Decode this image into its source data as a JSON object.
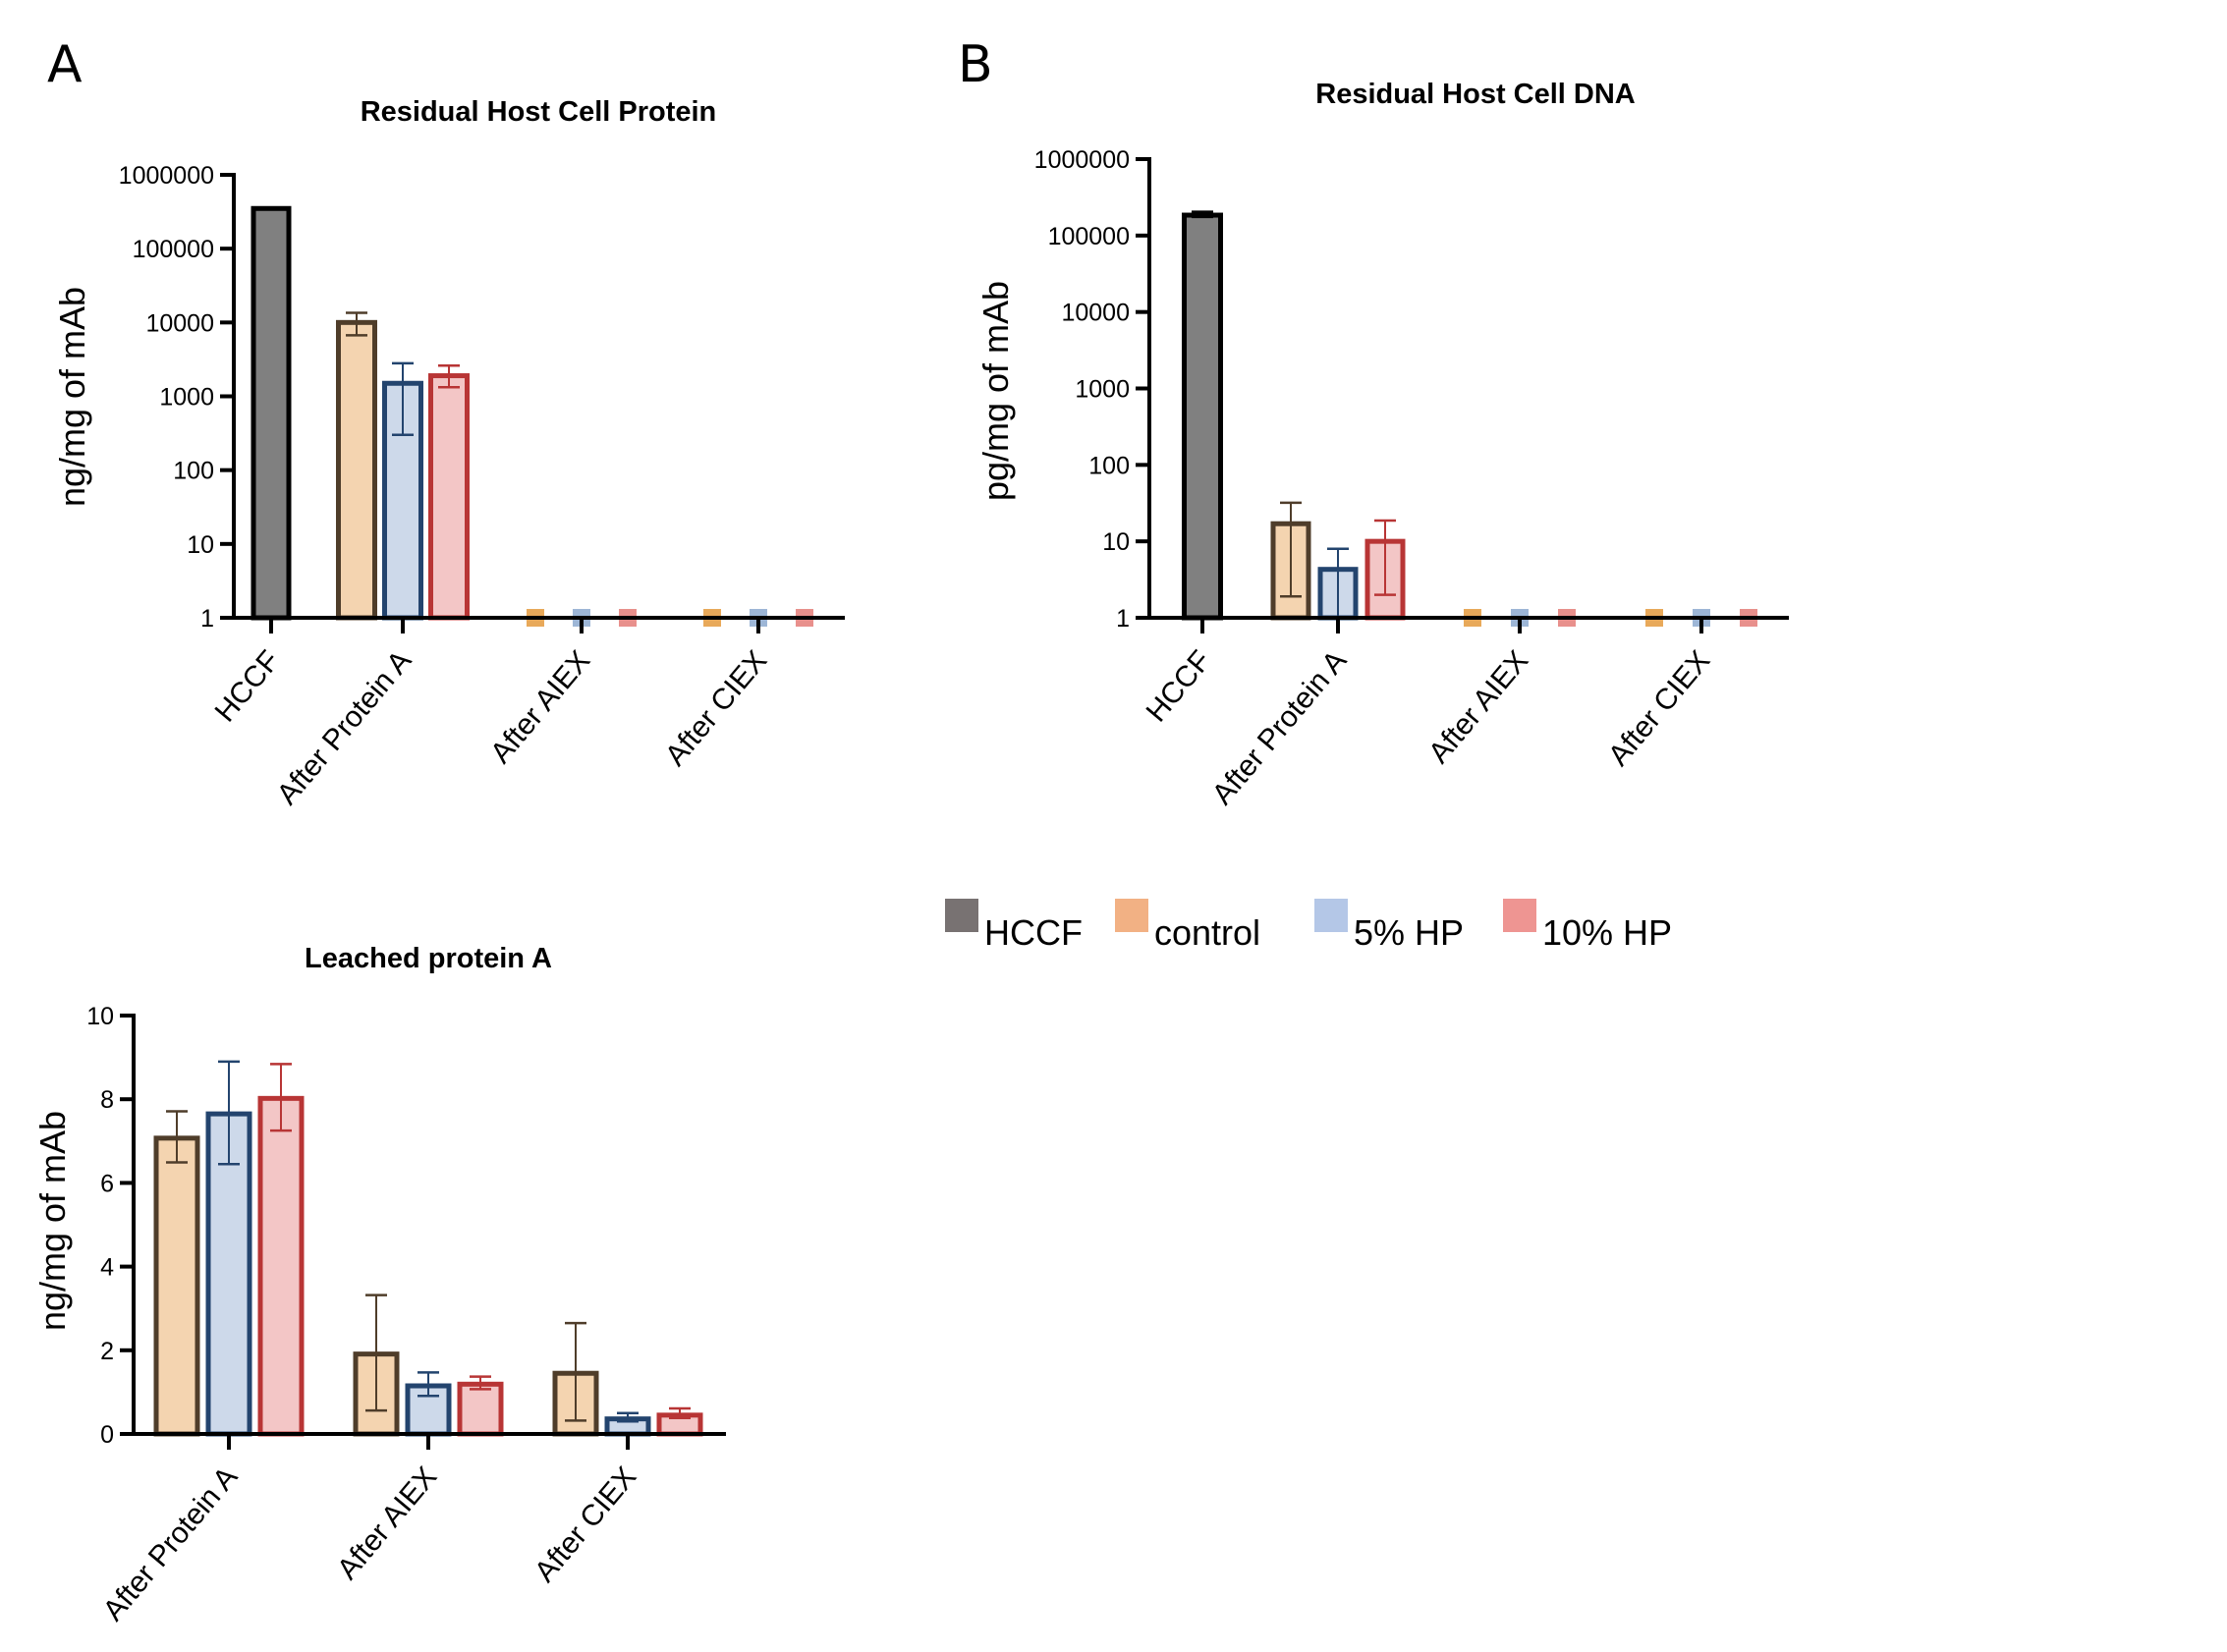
{
  "panel_labels": {
    "a": "A",
    "b": "B"
  },
  "legend": [
    {
      "label": "HCCF",
      "color": "#787272"
    },
    {
      "label": "control",
      "color": "#F2B184"
    },
    {
      "label": "5% HP",
      "color": "#B4C7E7"
    },
    {
      "label": "10% HP",
      "color": "#EE9592"
    }
  ],
  "series_styles": {
    "HCCF": {
      "fill": "#808080",
      "stroke": "#000000"
    },
    "control": {
      "fill": "#F4D4B0",
      "stroke": "#4F3D2A",
      "marker": "#E8A95A"
    },
    "5% HP": {
      "fill": "#CDD9EA",
      "stroke": "#23446E",
      "marker": "#9DB6D6"
    },
    "10% HP": {
      "fill": "#F3C6C6",
      "stroke": "#B83535",
      "marker": "#E8908C"
    }
  },
  "chart_data": [
    {
      "id": "hcp",
      "type": "bar",
      "scale": "log",
      "title": "Residual Host Cell Protein",
      "xlabel": "",
      "ylabel": "ng/mg of mAb",
      "ylim": [
        1,
        1000000
      ],
      "yticks": [
        "1",
        "10",
        "100",
        "1000",
        "10000",
        "100000",
        "1000000"
      ],
      "categories": [
        "HCCF",
        "After Protein A",
        "After AIEX",
        "After CIEX"
      ],
      "series": [
        {
          "name": "HCCF",
          "values": [
            350000,
            null,
            null,
            null
          ],
          "err_low": [
            340000,
            null,
            null,
            null
          ],
          "err_high": [
            360000,
            null,
            null,
            null
          ]
        },
        {
          "name": "control",
          "values": [
            null,
            10000,
            1,
            1
          ],
          "err_low": [
            null,
            6700,
            null,
            null
          ],
          "err_high": [
            null,
            13500,
            null,
            null
          ]
        },
        {
          "name": "5% HP",
          "values": [
            null,
            1500,
            1,
            1
          ],
          "err_low": [
            null,
            300,
            null,
            null
          ],
          "err_high": [
            null,
            2800,
            null,
            null
          ]
        },
        {
          "name": "10% HP",
          "values": [
            null,
            1900,
            1,
            1
          ],
          "err_low": [
            null,
            1330,
            null,
            null
          ],
          "err_high": [
            null,
            2600,
            null,
            null
          ]
        }
      ],
      "note": "After AIEX / After CIEX values at detection floor (shown as markers on axis)"
    },
    {
      "id": "dna",
      "type": "bar",
      "scale": "log",
      "title": "Residual Host Cell DNA",
      "xlabel": "",
      "ylabel": "pg/mg of mAb",
      "ylim": [
        1,
        1000000
      ],
      "yticks": [
        "1",
        "10",
        "100",
        "1000",
        "10000",
        "100000",
        "1000000"
      ],
      "categories": [
        "HCCF",
        "After Protein A",
        "After AIEX",
        "After CIEX"
      ],
      "series": [
        {
          "name": "HCCF",
          "values": [
            185000,
            null,
            null,
            null
          ],
          "err_low": [
            175000,
            null,
            null,
            null
          ],
          "err_high": [
            205000,
            null,
            null,
            null
          ]
        },
        {
          "name": "control",
          "values": [
            null,
            17,
            1,
            1
          ],
          "err_low": [
            null,
            1.9,
            null,
            null
          ],
          "err_high": [
            null,
            32,
            null,
            null
          ]
        },
        {
          "name": "5% HP",
          "values": [
            null,
            4.3,
            1,
            1
          ],
          "err_low": [
            null,
            1.0,
            null,
            null
          ],
          "err_high": [
            null,
            8.0,
            null,
            null
          ]
        },
        {
          "name": "10% HP",
          "values": [
            null,
            10,
            1,
            1
          ],
          "err_low": [
            null,
            2.0,
            null,
            null
          ],
          "err_high": [
            null,
            18.7,
            null,
            null
          ]
        }
      ],
      "note": "After AIEX / After CIEX values at detection floor (shown as markers on axis)"
    },
    {
      "id": "leached",
      "type": "bar",
      "scale": "linear",
      "title": "Leached protein A",
      "xlabel": "",
      "ylabel": "ng/mg of mAb",
      "ylim": [
        0,
        10
      ],
      "yticks": [
        "0",
        "2",
        "4",
        "6",
        "8",
        "10"
      ],
      "categories": [
        "After Protein A",
        "After AIEX",
        "After CIEX"
      ],
      "series": [
        {
          "name": "control",
          "values": [
            7.07,
            1.91,
            1.45
          ],
          "err_low": [
            6.49,
            0.56,
            0.32
          ],
          "err_high": [
            7.71,
            3.32,
            2.65
          ]
        },
        {
          "name": "5% HP",
          "values": [
            7.65,
            1.15,
            0.36
          ],
          "err_low": [
            6.45,
            0.91,
            0.3
          ],
          "err_high": [
            8.9,
            1.47,
            0.5
          ]
        },
        {
          "name": "10% HP",
          "values": [
            8.02,
            1.19,
            0.45
          ],
          "err_low": [
            7.25,
            1.07,
            0.38
          ],
          "err_high": [
            8.84,
            1.37,
            0.61
          ]
        }
      ]
    }
  ]
}
